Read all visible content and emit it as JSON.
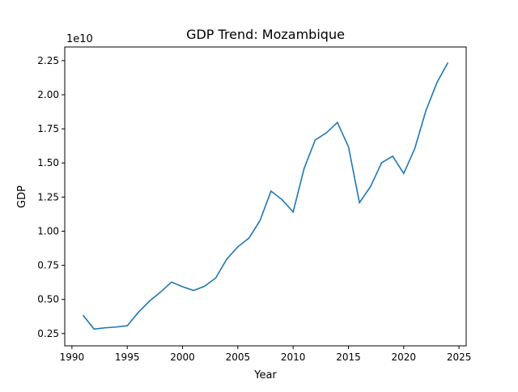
{
  "chart_data": {
    "type": "line",
    "title": "GDP Trend: Mozambique",
    "xlabel": "Year",
    "ylabel": "GDP",
    "y_scale_label": "1e10",
    "xlim": [
      1989.35,
      2025.65
    ],
    "ylim": [
      0.16,
      2.35
    ],
    "x_ticks": [
      1990,
      1995,
      2000,
      2005,
      2010,
      2015,
      2020,
      2025
    ],
    "y_ticks": [
      0.25,
      0.5,
      0.75,
      1.0,
      1.25,
      1.5,
      1.75,
      2.0,
      2.25
    ],
    "x_tick_labels": [
      "1990",
      "1995",
      "2000",
      "2005",
      "2010",
      "2015",
      "2020",
      "2025"
    ],
    "y_tick_labels": [
      "0.25",
      "0.50",
      "0.75",
      "1.00",
      "1.25",
      "1.50",
      "1.75",
      "2.00",
      "2.25"
    ],
    "grid": false,
    "series": [
      {
        "color": "#1f77b4",
        "x": [
          1991,
          1992,
          1993,
          1994,
          1995,
          1996,
          1997,
          1998,
          1999,
          2000,
          2001,
          2002,
          2003,
          2004,
          2005,
          2006,
          2007,
          2008,
          2009,
          2010,
          2011,
          2012,
          2013,
          2014,
          2015,
          2016,
          2017,
          2018,
          2019,
          2020,
          2021,
          2022,
          2023,
          2024
        ],
        "values": [
          0.385,
          0.283,
          0.292,
          0.298,
          0.307,
          0.405,
          0.487,
          0.553,
          0.627,
          0.593,
          0.566,
          0.597,
          0.657,
          0.795,
          0.886,
          0.949,
          1.077,
          1.294,
          1.231,
          1.141,
          1.461,
          1.669,
          1.72,
          1.797,
          1.62,
          1.209,
          1.327,
          1.502,
          1.55,
          1.423,
          1.606,
          1.882,
          2.088,
          2.236
        ]
      }
    ]
  }
}
